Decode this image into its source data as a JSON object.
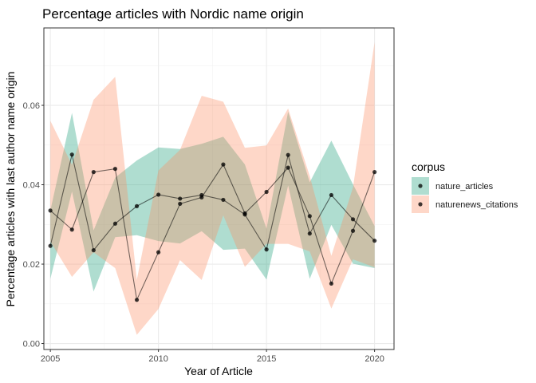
{
  "chart_data": {
    "type": "line",
    "title": "Percentage articles with Nordic name origin",
    "xlabel": "Year of Article",
    "ylabel": "Percentage articles with last author name origin",
    "x": [
      2005,
      2006,
      2007,
      2008,
      2009,
      2010,
      2011,
      2012,
      2013,
      2014,
      2015,
      2016,
      2017,
      2018,
      2019,
      2020
    ],
    "xlim": [
      2004.7,
      2020.9
    ],
    "ylim": [
      -0.0015,
      0.0795
    ],
    "xticks": [
      "2005",
      "2010",
      "2015",
      "2020"
    ],
    "xtick_values": [
      2005,
      2010,
      2015,
      2020
    ],
    "yticks": [
      "0.00",
      "0.02",
      "0.04",
      "0.06"
    ],
    "ytick_values": [
      0.0,
      0.02,
      0.04,
      0.06
    ],
    "grid": true,
    "legend": {
      "title": "corpus",
      "position": "right"
    },
    "series": [
      {
        "name": "nature_articles",
        "color": "#1b9e77",
        "values": [
          0.0246,
          0.0476,
          0.0235,
          0.0302,
          0.0346,
          0.0375,
          0.0365,
          0.0374,
          0.0362,
          0.0325,
          0.0237,
          0.0475,
          0.0277,
          0.0374,
          0.0313,
          0.0259
        ],
        "lower": [
          0.0163,
          0.0383,
          0.0131,
          0.0268,
          0.0273,
          0.0258,
          0.0252,
          0.0283,
          0.0236,
          0.0239,
          0.0161,
          0.0398,
          0.0163,
          0.0299,
          0.0201,
          0.019
        ],
        "upper": [
          0.0335,
          0.0581,
          0.0285,
          0.0418,
          0.0461,
          0.0494,
          0.049,
          0.0503,
          0.0521,
          0.0451,
          0.0289,
          0.0584,
          0.0406,
          0.0511,
          0.0401,
          0.0296
        ]
      },
      {
        "name": "naturenews_citations",
        "color": "#fc8d62",
        "values": [
          0.0335,
          0.0287,
          0.0432,
          0.044,
          0.011,
          0.023,
          0.0352,
          0.0368,
          0.0451,
          0.0328,
          0.0382,
          0.0443,
          0.0321,
          0.0151,
          0.0284,
          0.0432
        ],
        "lower": [
          0.0257,
          0.0168,
          0.023,
          0.019,
          0.0022,
          0.0087,
          0.021,
          0.016,
          0.0323,
          0.0193,
          0.0251,
          0.0251,
          0.0232,
          0.0088,
          0.0212,
          0.0192
        ],
        "upper": [
          0.0561,
          0.045,
          0.0614,
          0.0672,
          0.016,
          0.0436,
          0.0488,
          0.0624,
          0.0609,
          0.0493,
          0.0499,
          0.0592,
          0.0422,
          0.0221,
          0.0393,
          0.0759
        ]
      }
    ]
  }
}
